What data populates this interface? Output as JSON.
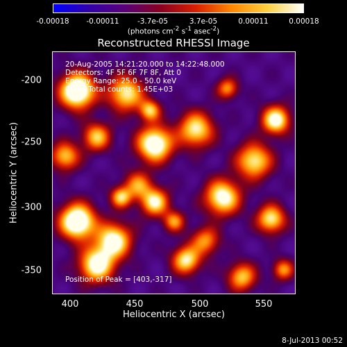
{
  "colorbar": {
    "ticks": [
      "-0.00018",
      "-0.00011",
      "-3.7e-05",
      "3.7e-05",
      "0.00011",
      "0.00018"
    ],
    "units_main": "(photons cm",
    "units_sup1": "-2",
    "units_mid": " s",
    "units_sup2": "-1",
    "units_tail": " asec",
    "units_sup3": "-2",
    "units_close": ")",
    "colors": [
      "#0000ff",
      "#3300aa",
      "#5a0078",
      "#8a0020",
      "#d82000",
      "#ff8800",
      "#ffd040",
      "#ffffff"
    ]
  },
  "plot": {
    "title": "Reconstructed RHESSI Image",
    "info_lines": [
      "20-Aug-2005 14:21:20.000 to 14:22:48.000",
      "Detectors: 4F 5F 6F 7F 8F, Att 0",
      "Energy Range: 25.0 - 50.0 keV",
      "Clean     Total counts: 1.45E+03"
    ],
    "peak_label": "Position of Peak = [403,-317]",
    "xlabel": "Heliocentric X (arcsec)",
    "ylabel": "Heliocentric Y (arcsec)",
    "xticks": [
      "400",
      "450",
      "500",
      "550"
    ],
    "yticks": [
      "-200",
      "-250",
      "-300",
      "-350"
    ]
  },
  "footer": {
    "date": "8-Jul-2013 00:52"
  }
}
